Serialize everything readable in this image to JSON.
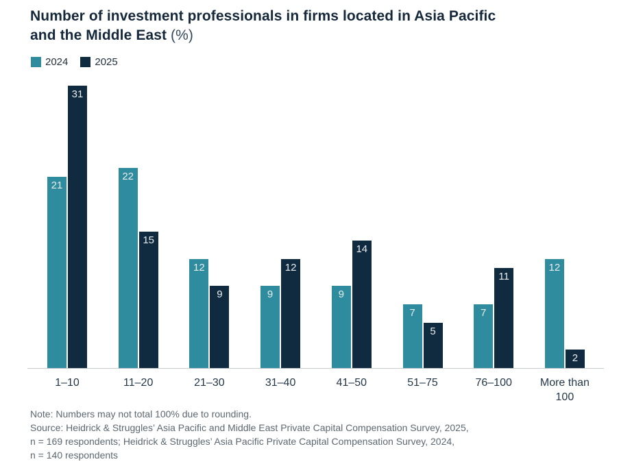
{
  "title": {
    "line1": "Number of investment professionals in firms located in Asia Pacific",
    "line2_bold": "and the Middle East",
    "line2_suffix": "(%)"
  },
  "chart_data": {
    "type": "bar",
    "title": "Number of investment professionals in firms located in Asia Pacific and the Middle East (%)",
    "categories": [
      "1–10",
      "11–20",
      "21–30",
      "31–40",
      "41–50",
      "51–75",
      "76–100",
      "More than 100"
    ],
    "series": [
      {
        "name": "2024",
        "color": "#2e8c9e",
        "values": [
          21,
          22,
          12,
          9,
          9,
          7,
          7,
          12
        ]
      },
      {
        "name": "2025",
        "color": "#102b40",
        "values": [
          31,
          15,
          9,
          12,
          14,
          5,
          11,
          2
        ]
      }
    ],
    "ylim": [
      0,
      31
    ],
    "grid": false,
    "value_labels": true,
    "value_label_color": "#e8edef",
    "legend_position": "top-left",
    "xlabel": "",
    "ylabel": ""
  },
  "colors": {
    "title_text": "#15273a",
    "axis_label": "#243748",
    "note_text": "#5b6770",
    "baseline": "#c9cccd"
  },
  "notes": [
    "Note: Numbers may not total 100% due to rounding.",
    "Source: Heidrick & Struggles’ Asia Pacific and Middle East Private Capital Compensation Survey, 2025,",
    "n = 169 respondents; Heidrick & Struggles’ Asia Pacific Private Capital Compensation Survey, 2024,",
    "n = 140 respondents"
  ]
}
